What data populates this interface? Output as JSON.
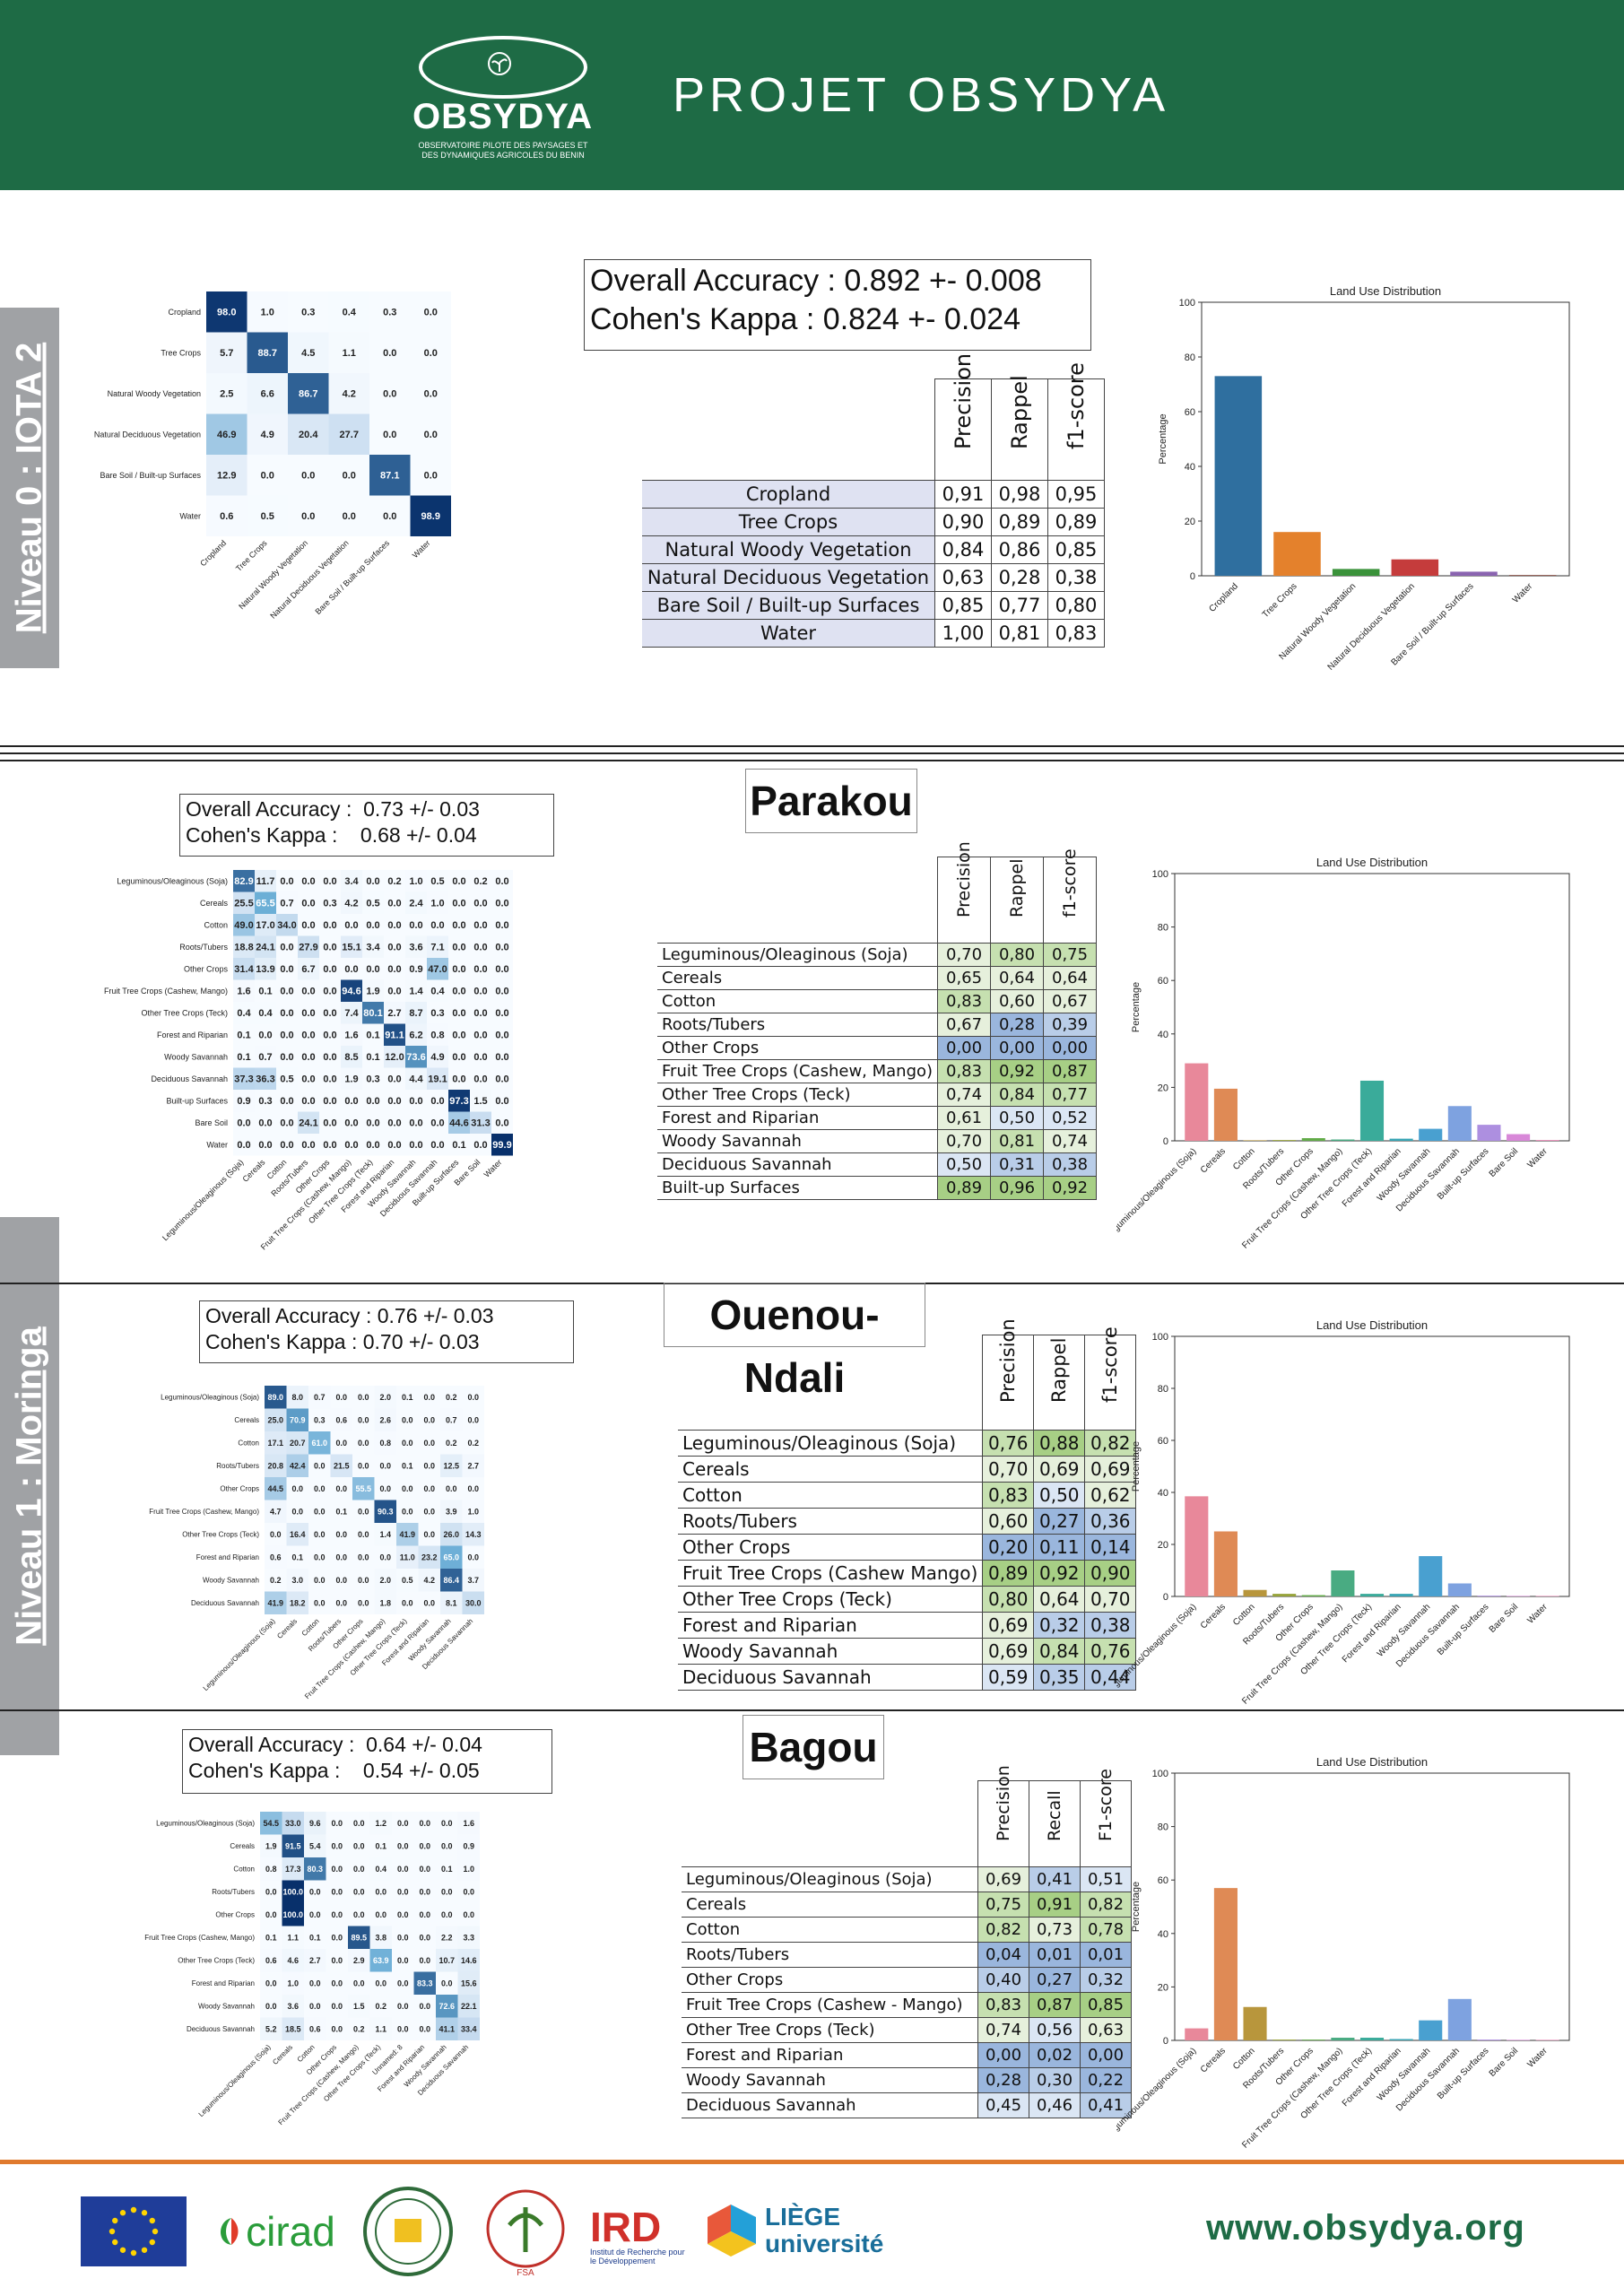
{
  "header": {
    "logo_word": "OBSYDYA",
    "logo_tagline_1": "OBSERVATOIRE PILOTE DES PAYSAGES ET",
    "logo_tagline_2": "DES DYNAMIQUES AGRICOLES DU BENIN",
    "title": "PROJET OBSYDYA"
  },
  "side_tabs": {
    "niveau0": "Niveau 0 : IOTA 2",
    "niveau1": "Niveau 1 : Moringa"
  },
  "niveau0": {
    "confusion": {
      "rows": [
        "Cropland",
        "Tree Crops",
        "Natural Woody Vegetation",
        "Natural Deciduous Vegetation",
        "Bare Soil / Built-up Surfaces",
        "Water"
      ],
      "cols": [
        "Cropland",
        "Tree Crops",
        "Natural Woody Vegetation",
        "Natural Deciduous Vegetation",
        "Bare Soil / Built-up Surfaces",
        "Water"
      ],
      "values": [
        [
          98.0,
          1.0,
          0.3,
          0.4,
          0.3,
          0.0
        ],
        [
          5.7,
          88.7,
          4.5,
          1.1,
          0.0,
          0.0
        ],
        [
          2.5,
          6.6,
          86.7,
          4.2,
          0.0,
          0.0
        ],
        [
          46.9,
          4.9,
          20.4,
          27.7,
          0.0,
          0.0
        ],
        [
          12.9,
          0.0,
          0.0,
          0.0,
          87.1,
          0.0
        ],
        [
          0.6,
          0.5,
          0.0,
          0.0,
          0.0,
          98.9
        ]
      ]
    },
    "overall_accuracy": "Overall Accuracy : 0.892 +- 0.008",
    "kappa": "Cohen's Kappa : 0.824 +- 0.024",
    "metrics_table": {
      "headers": [
        "Precision",
        "Rappel",
        "f1-score"
      ],
      "rows": [
        [
          "Cropland",
          "0,91",
          "0,98",
          "0,95"
        ],
        [
          "Tree Crops",
          "0,90",
          "0,89",
          "0,89"
        ],
        [
          "Natural Woody Vegetation",
          "0,84",
          "0,86",
          "0,85"
        ],
        [
          "Natural Deciduous Vegetation",
          "0,63",
          "0,28",
          "0,38"
        ],
        [
          "Bare Soil / Built-up Surfaces",
          "0,85",
          "0,77",
          "0,80"
        ],
        [
          "Water",
          "1,00",
          "0,81",
          "0,83"
        ]
      ]
    }
  },
  "parakou": {
    "city": "Parakou",
    "overall_accuracy": "Overall Accuracy :  0.73 +/- 0.03",
    "kappa": "Cohen's Kappa :    0.68 +/- 0.04",
    "confusion": {
      "rows": [
        "Leguminous/Oleaginous (Soja)",
        "Cereals",
        "Cotton",
        "Roots/Tubers",
        "Other Crops",
        "Fruit Tree Crops (Cashew, Mango)",
        "Other Tree Crops (Teck)",
        "Forest and Riparian",
        "Woody Savannah",
        "Deciduous Savannah",
        "Built-up Surfaces",
        "Bare Soil",
        "Water"
      ],
      "cols": [
        "Leguminous/Oleaginous (Soja)",
        "Cereals",
        "Cotton",
        "Roots/Tubers",
        "Other Crops",
        "Fruit Tree Crops (Cashew, Mango)",
        "Other Tree Crops (Teck)",
        "Forest and Riparian",
        "Woody Savannah",
        "Deciduous Savannah",
        "Built-up Surfaces",
        "Bare Soil",
        "Water"
      ],
      "values": [
        [
          82.9,
          11.7,
          0.0,
          0.0,
          0.0,
          3.4,
          0.0,
          0.2,
          1.0,
          0.5,
          0.0,
          0.2,
          0.0
        ],
        [
          25.5,
          65.5,
          0.7,
          0.0,
          0.3,
          4.2,
          0.5,
          0.0,
          2.4,
          1.0,
          0.0,
          0.0,
          0.0
        ],
        [
          49.0,
          17.0,
          34.0,
          0.0,
          0.0,
          0.0,
          0.0,
          0.0,
          0.0,
          0.0,
          0.0,
          0.0,
          0.0
        ],
        [
          18.8,
          24.1,
          0.0,
          27.9,
          0.0,
          15.1,
          3.4,
          0.0,
          3.6,
          7.1,
          0.0,
          0.0,
          0.0
        ],
        [
          31.4,
          13.9,
          0.0,
          6.7,
          0.0,
          0.0,
          0.0,
          0.0,
          0.9,
          47.0,
          0.0,
          0.0,
          0.0
        ],
        [
          1.6,
          0.1,
          0.0,
          0.0,
          0.0,
          94.6,
          1.9,
          0.0,
          1.4,
          0.4,
          0.0,
          0.0,
          0.0
        ],
        [
          0.4,
          0.4,
          0.0,
          0.0,
          0.0,
          7.4,
          80.1,
          2.7,
          8.7,
          0.3,
          0.0,
          0.0,
          0.0
        ],
        [
          0.1,
          0.0,
          0.0,
          0.0,
          0.0,
          1.6,
          0.1,
          91.1,
          6.2,
          0.8,
          0.0,
          0.0,
          0.0
        ],
        [
          0.1,
          0.7,
          0.0,
          0.0,
          0.0,
          8.5,
          0.1,
          12.0,
          73.6,
          4.9,
          0.0,
          0.0,
          0.0
        ],
        [
          37.3,
          36.3,
          0.5,
          0.0,
          0.0,
          1.9,
          0.3,
          0.0,
          4.4,
          19.1,
          0.0,
          0.0,
          0.0
        ],
        [
          0.9,
          0.3,
          0.0,
          0.0,
          0.0,
          0.0,
          0.0,
          0.0,
          0.0,
          0.0,
          97.3,
          1.5,
          0.0
        ],
        [
          0.0,
          0.0,
          0.0,
          24.1,
          0.0,
          0.0,
          0.0,
          0.0,
          0.0,
          0.0,
          44.6,
          31.3,
          0.0
        ],
        [
          0.0,
          0.0,
          0.0,
          0.0,
          0.0,
          0.0,
          0.0,
          0.0,
          0.0,
          0.0,
          0.1,
          0.0,
          99.9
        ]
      ]
    },
    "metrics_table": {
      "headers": [
        "Precision",
        "Rappel",
        "f1-score"
      ],
      "rows": [
        [
          "Leguminous/Oleaginous (Soja)",
          "0,70",
          "0,80",
          "0,75"
        ],
        [
          "Cereals",
          "0,65",
          "0,64",
          "0,64"
        ],
        [
          "Cotton",
          "0,83",
          "0,60",
          "0,67"
        ],
        [
          "Roots/Tubers",
          "0,67",
          "0,28",
          "0,39"
        ],
        [
          "Other Crops",
          "0,00",
          "0,00",
          "0,00"
        ],
        [
          "Fruit Tree Crops (Cashew, Mango)",
          "0,83",
          "0,92",
          "0,87"
        ],
        [
          "Other Tree Crops (Teck)",
          "0,74",
          "0,84",
          "0,77"
        ],
        [
          "Forest and Riparian",
          "0,61",
          "0,50",
          "0,52"
        ],
        [
          "Woody Savannah",
          "0,70",
          "0,81",
          "0,74"
        ],
        [
          "Deciduous Savannah",
          "0,50",
          "0,31",
          "0,38"
        ],
        [
          "Built-up Surfaces",
          "0,89",
          "0,96",
          "0,92"
        ]
      ]
    }
  },
  "ouenou": {
    "city": "Ouenou-Ndali",
    "overall_accuracy": "Overall Accuracy : 0.76 +/- 0.03",
    "kappa": "Cohen's Kappa : 0.70 +/- 0.03",
    "confusion": {
      "rows": [
        "Leguminous/Oleaginous (Soja)",
        "Cereals",
        "Cotton",
        "Roots/Tubers",
        "Other Crops",
        "Fruit Tree Crops (Cashew, Mango)",
        "Other Tree Crops (Teck)",
        "Forest and Riparian",
        "Woody Savannah",
        "Deciduous Savannah"
      ],
      "cols": [
        "Leguminous/Oleaginous (Soja)",
        "Cereals",
        "Cotton",
        "Roots/Tubers",
        "Other Crops",
        "Fruit Tree Crops (Cashew, Mango)",
        "Other Tree Crops (Teck)",
        "Forest and Riparian",
        "Woody Savannah",
        "Deciduous Savannah"
      ],
      "values": [
        [
          89.0,
          8.0,
          0.7,
          0.0,
          0.0,
          2.0,
          0.1,
          0.0,
          0.2,
          0.0
        ],
        [
          25.0,
          70.9,
          0.3,
          0.6,
          0.0,
          2.6,
          0.0,
          0.0,
          0.7,
          0.0
        ],
        [
          17.1,
          20.7,
          61.0,
          0.0,
          0.0,
          0.8,
          0.0,
          0.0,
          0.2,
          0.2
        ],
        [
          20.8,
          42.4,
          0.0,
          21.5,
          0.0,
          0.0,
          0.1,
          0.0,
          12.5,
          2.7
        ],
        [
          44.5,
          0.0,
          0.0,
          0.0,
          55.5,
          0.0,
          0.0,
          0.0,
          0.0,
          0.0
        ],
        [
          4.7,
          0.0,
          0.0,
          0.1,
          0.0,
          90.3,
          0.0,
          0.0,
          3.9,
          1.0
        ],
        [
          0.0,
          16.4,
          0.0,
          0.0,
          0.0,
          1.4,
          41.9,
          0.0,
          26.0,
          14.3
        ],
        [
          0.6,
          0.1,
          0.0,
          0.0,
          0.0,
          0.0,
          11.0,
          23.2,
          65.0,
          0.0
        ],
        [
          0.2,
          3.0,
          0.0,
          0.0,
          0.0,
          2.0,
          0.5,
          4.2,
          86.4,
          3.7
        ],
        [
          41.9,
          18.2,
          0.0,
          0.0,
          0.0,
          1.8,
          0.0,
          0.0,
          8.1,
          30.0
        ]
      ]
    },
    "metrics_table": {
      "headers": [
        "Precision",
        "Rappel",
        "f1-score"
      ],
      "rows": [
        [
          "Leguminous/Oleaginous (Soja)",
          "0,76",
          "0,88",
          "0,82"
        ],
        [
          "Cereals",
          "0,70",
          "0,69",
          "0,69"
        ],
        [
          "Cotton",
          "0,83",
          "0,50",
          "0,62"
        ],
        [
          "Roots/Tubers",
          "0,60",
          "0,27",
          "0,36"
        ],
        [
          "Other Crops",
          "0,20",
          "0,11",
          "0,14"
        ],
        [
          "Fruit Tree Crops (Cashew Mango)",
          "0,89",
          "0,92",
          "0,90"
        ],
        [
          "Other Tree Crops (Teck)",
          "0,80",
          "0,64",
          "0,70"
        ],
        [
          "Forest and Riparian",
          "0,69",
          "0,32",
          "0,38"
        ],
        [
          "Woody Savannah",
          "0,69",
          "0,84",
          "0,76"
        ],
        [
          "Deciduous Savannah",
          "0,59",
          "0,35",
          "0,44"
        ]
      ]
    }
  },
  "bagou": {
    "city": "Bagou",
    "overall_accuracy": "Overall Accuracy :  0.64 +/- 0.04",
    "kappa": "Cohen's Kappa :    0.54 +/- 0.05",
    "confusion": {
      "rows": [
        "Leguminous/Oleaginous (Soja)",
        "Cereals",
        "Cotton",
        "Roots/Tubers",
        "Other Crops",
        "Fruit Tree Crops (Cashew, Mango)",
        "Other Tree Crops (Teck)",
        "Forest and Riparian",
        "Woody Savannah",
        "Deciduous Savannah"
      ],
      "cols": [
        "Leguminous/Oleaginous (Soja)",
        "Cereals",
        "Cotton",
        "Other Crops",
        "Fruit Tree Crops (Cashew, Mango)",
        "Other Tree Crops (Teck)",
        "Unnamed: 8",
        "Forest and Riparian",
        "Woody Savannah",
        "Deciduous Savannah"
      ],
      "values": [
        [
          54.5,
          33.0,
          9.6,
          0.0,
          0.0,
          1.2,
          0.0,
          0.0,
          0.0,
          1.6
        ],
        [
          1.9,
          91.5,
          5.4,
          0.0,
          0.0,
          0.1,
          0.0,
          0.0,
          0.0,
          0.9
        ],
        [
          0.8,
          17.3,
          80.3,
          0.0,
          0.0,
          0.4,
          0.0,
          0.0,
          0.1,
          1.0
        ],
        [
          0.0,
          100.0,
          0.0,
          0.0,
          0.0,
          0.0,
          0.0,
          0.0,
          0.0,
          0.0
        ],
        [
          0.0,
          100.0,
          0.0,
          0.0,
          0.0,
          0.0,
          0.0,
          0.0,
          0.0,
          0.0
        ],
        [
          0.1,
          1.1,
          0.1,
          0.0,
          89.5,
          3.8,
          0.0,
          0.0,
          2.2,
          3.3
        ],
        [
          0.6,
          4.6,
          2.7,
          0.0,
          2.9,
          63.9,
          0.0,
          0.0,
          10.7,
          14.6
        ],
        [
          0.0,
          1.0,
          0.0,
          0.0,
          0.0,
          0.0,
          0.0,
          83.3,
          0.0,
          15.6
        ],
        [
          0.0,
          3.6,
          0.0,
          0.0,
          1.5,
          0.2,
          0.0,
          0.0,
          72.6,
          22.1
        ],
        [
          5.2,
          18.5,
          0.6,
          0.0,
          0.2,
          1.1,
          0.0,
          0.0,
          41.1,
          33.4
        ]
      ]
    },
    "metrics_table": {
      "headers": [
        "Precision",
        "Recall",
        "F1-score"
      ],
      "rows": [
        [
          "Leguminous/Oleaginous (Soja)",
          "0,69",
          "0,41",
          "0,51"
        ],
        [
          "Cereals",
          "0,75",
          "0,91",
          "0,82"
        ],
        [
          "Cotton",
          "0,82",
          "0,73",
          "0,78"
        ],
        [
          "Roots/Tubers",
          "0,04",
          "0,01",
          "0,01"
        ],
        [
          "Other Crops",
          "0,40",
          "0,27",
          "0,32"
        ],
        [
          "Fruit Tree Crops (Cashew - Mango)",
          "0,83",
          "0,87",
          "0,85"
        ],
        [
          "Other Tree Crops (Teck)",
          "0,74",
          "0,56",
          "0,63"
        ],
        [
          "Forest and Riparian",
          "0,00",
          "0,02",
          "0,00"
        ],
        [
          "Woody Savannah",
          "0,28",
          "0,30",
          "0,22"
        ],
        [
          "Deciduous Savannah",
          "0,45",
          "0,46",
          "0,41"
        ]
      ]
    }
  },
  "chart_data": [
    {
      "type": "bar",
      "title": "Land Use Distribution",
      "ylabel": "Percentage",
      "ylim": [
        0,
        100
      ],
      "categories": [
        "Cropland",
        "Tree Crops",
        "Natural Woody Vegetation",
        "Natural Deciduous Vegetation",
        "Bare Soil / Built-up Surfaces",
        "Water"
      ],
      "values": [
        73,
        16,
        2.5,
        6,
        1.5,
        0.3
      ],
      "colors": [
        "#2f6f9f",
        "#e4812c",
        "#3a923a",
        "#c53c3c",
        "#8a64b0",
        "#8c564b"
      ]
    },
    {
      "type": "bar",
      "title": "Land Use Distribution",
      "ylabel": "Percentage",
      "ylim": [
        0,
        100
      ],
      "categories": [
        "Leguminous/Oleaginous (Soja)",
        "Cereals",
        "Cotton",
        "Roots/Tubers",
        "Other Crops",
        "Fruit Tree Crops (Cashew, Mango)",
        "Other Tree Crops (Teck)",
        "Forest and Riparian",
        "Woody Savannah",
        "Deciduous Savannah",
        "Built-up Surfaces",
        "Bare Soil",
        "Water"
      ],
      "values": [
        29,
        19.5,
        0.2,
        0.3,
        1,
        0.5,
        22.5,
        0.8,
        4.5,
        13,
        6,
        2.5,
        0.3
      ],
      "colors": [
        "#e8889a",
        "#df8a55",
        "#b8963c",
        "#97a33a",
        "#62ab48",
        "#49ab82",
        "#3aab9a",
        "#39a5b5",
        "#49a0d0",
        "#7ea2e0",
        "#ad8fe0",
        "#d888d8",
        "#e888b5"
      ]
    },
    {
      "type": "bar",
      "title": "Land Use Distribution",
      "ylabel": "Percentage",
      "ylim": [
        0,
        100
      ],
      "categories": [
        "Leguminous/Oleaginous (Soja)",
        "Cereals",
        "Cotton",
        "Roots/Tubers",
        "Other Crops",
        "Fruit Tree Crops (Cashew, Mango)",
        "Other Tree Crops (Teck)",
        "Forest and Riparian",
        "Woody Savannah",
        "Deciduous Savannah",
        "Built-up Surfaces",
        "Bare Soil",
        "Water"
      ],
      "values": [
        38.5,
        25,
        2.5,
        1,
        0.5,
        10,
        1,
        1,
        15.5,
        5,
        0.3,
        0.2,
        0.2
      ],
      "colors": [
        "#e8889a",
        "#df8a55",
        "#b8963c",
        "#97a33a",
        "#62ab48",
        "#49ab82",
        "#3aab9a",
        "#39a5b5",
        "#49a0d0",
        "#7ea2e0",
        "#ad8fe0",
        "#d888d8",
        "#e888b5"
      ]
    },
    {
      "type": "bar",
      "title": "Land Use Distribution",
      "ylabel": "Percentage",
      "ylim": [
        0,
        100
      ],
      "categories": [
        "Leguminous/Oleaginous (Soja)",
        "Cereals",
        "Cotton",
        "Roots/Tubers",
        "Other Crops",
        "Fruit Tree Crops (Cashew, Mango)",
        "Other Tree Crops (Teck)",
        "Forest and Riparian",
        "Woody Savannah",
        "Deciduous Savannah",
        "Built-up Surfaces",
        "Bare Soil",
        "Water"
      ],
      "values": [
        4.5,
        57,
        12.5,
        0.3,
        0.3,
        1,
        1,
        0.5,
        7.5,
        15.5,
        0.3,
        0.2,
        0.2
      ],
      "colors": [
        "#e8889a",
        "#df8a55",
        "#b8963c",
        "#97a33a",
        "#62ab48",
        "#49ab82",
        "#3aab9a",
        "#39a5b5",
        "#49a0d0",
        "#7ea2e0",
        "#ad8fe0",
        "#d888d8",
        "#e888b5"
      ]
    }
  ],
  "footer": {
    "partners": [
      "cirad",
      "FSA",
      "IRD",
      "LIÈGE université"
    ],
    "ird_subtitle": "Institut de Recherche pour le Développement",
    "url": "www.obsydya.org"
  }
}
